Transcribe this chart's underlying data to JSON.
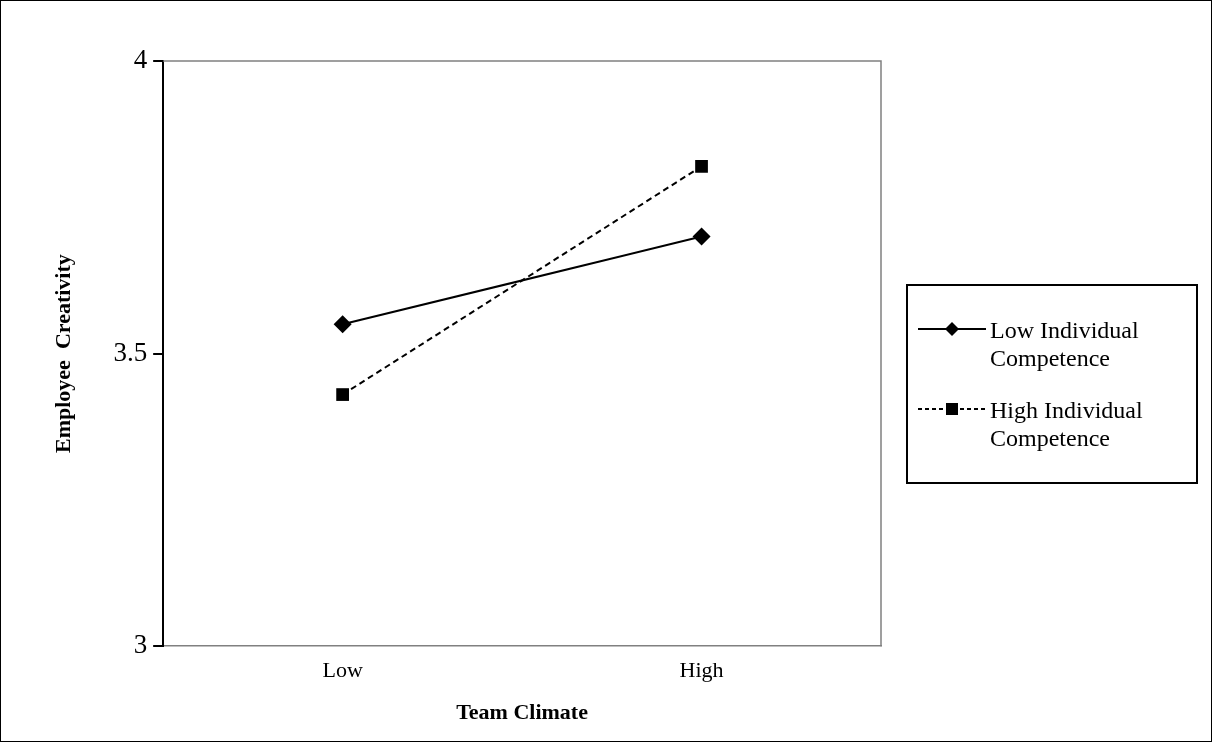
{
  "chart_data": {
    "type": "line",
    "xlabel": "Team Climate",
    "ylabel": "Employee  Creativity",
    "categories": [
      "Low",
      "High"
    ],
    "series": [
      {
        "name": "Low Individual Competence",
        "color": "#000000",
        "values": [
          3.55,
          3.7
        ],
        "marker": "diamond",
        "line_style": "solid"
      },
      {
        "name": "High Individual Competence",
        "color": "#000000",
        "values": [
          3.43,
          3.82
        ],
        "marker": "square",
        "line_style": "dashed"
      }
    ],
    "ylim": [
      3,
      4
    ],
    "yticks": [
      3,
      3.5,
      4
    ],
    "grid": false,
    "legend": "right"
  }
}
